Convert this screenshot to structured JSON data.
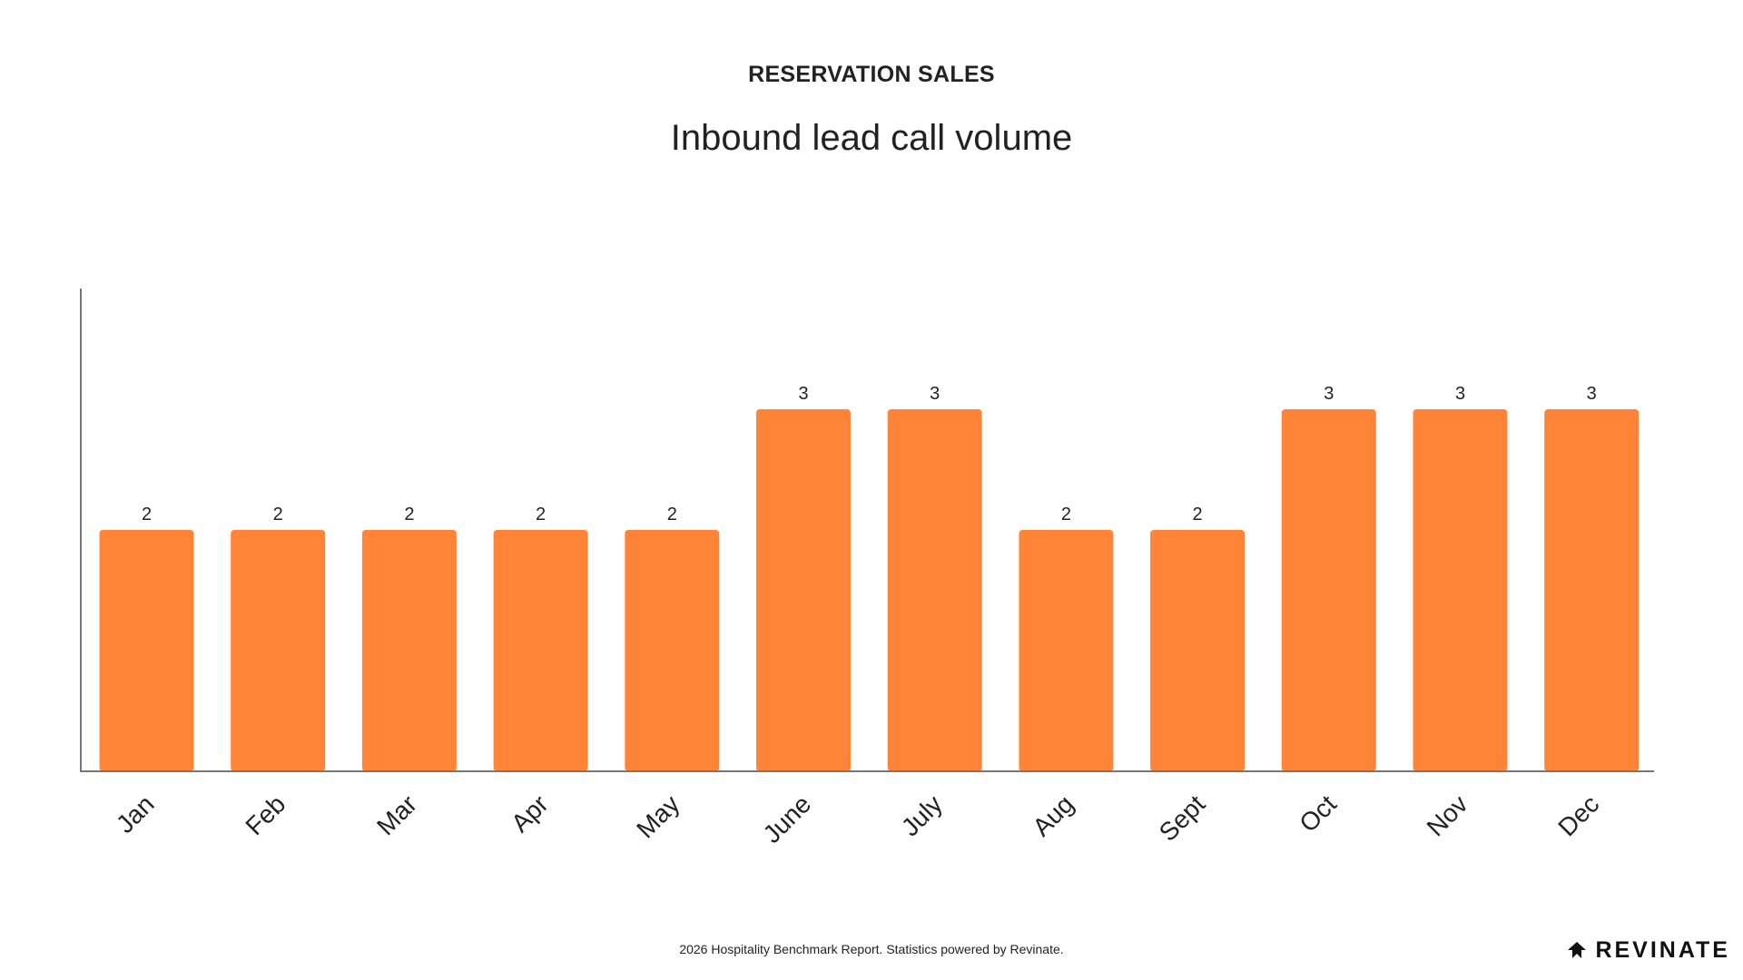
{
  "header": {
    "kicker": "RESERVATION SALES",
    "title": "Inbound lead call volume"
  },
  "footer": {
    "note": "2026 Hospitality Benchmark Report. Statistics powered by Revinate.",
    "brand": "REVINATE"
  },
  "colors": {
    "bar": "#FF8438",
    "axis": "#777777",
    "text": "#222222"
  },
  "chart_data": {
    "type": "bar",
    "title": "Inbound lead call volume",
    "categories": [
      "Jan",
      "Feb",
      "Mar",
      "Apr",
      "May",
      "June",
      "July",
      "Aug",
      "Sept",
      "Oct",
      "Nov",
      "Dec"
    ],
    "values": [
      2,
      2,
      2,
      2,
      2,
      3,
      3,
      2,
      2,
      3,
      3,
      3
    ],
    "xlabel": "",
    "ylabel": "",
    "ylim": [
      0,
      4
    ],
    "grid": false,
    "data_labels": true,
    "x_tick_rotation": "-45deg"
  }
}
